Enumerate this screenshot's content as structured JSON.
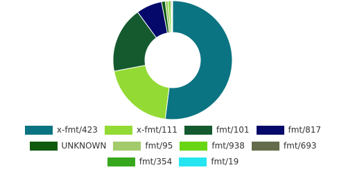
{
  "chart_data": {
    "type": "donut",
    "categories": [
      "x-fmt/423",
      "x-fmt/111",
      "fmt/101",
      "fmt/817",
      "UNKNOWN",
      "fmt/95",
      "fmt/938",
      "fmt/693",
      "fmt/354",
      "fmt/19"
    ],
    "values": [
      52,
      20,
      18,
      7,
      1,
      0.8,
      0.6,
      0.3,
      0.2,
      0.1
    ],
    "colors": [
      "#0b7482",
      "#93da34",
      "#145a2e",
      "#050a6a",
      "#0f5a0f",
      "#a3cb6b",
      "#69d614",
      "#646c4b",
      "#37a71e",
      "#25e5f0"
    ]
  }
}
